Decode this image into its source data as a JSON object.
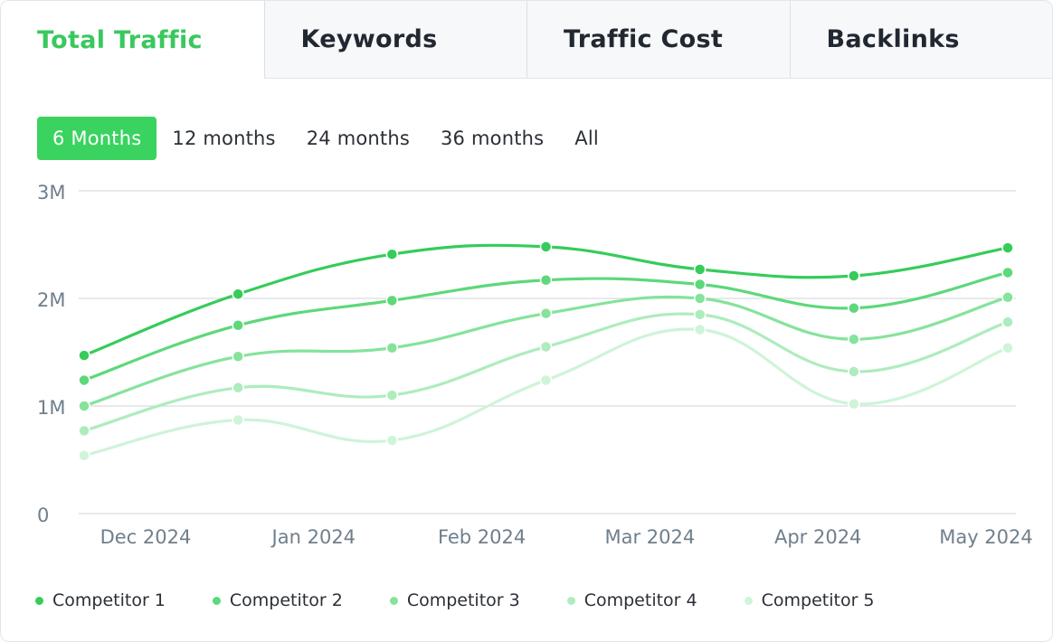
{
  "tabs": [
    {
      "label": "Total Traffic",
      "active": true
    },
    {
      "label": "Keywords",
      "active": false
    },
    {
      "label": "Traffic Cost",
      "active": false
    },
    {
      "label": "Backlinks",
      "active": false
    }
  ],
  "ranges": [
    {
      "label": "6 Months",
      "active": true
    },
    {
      "label": "12 months",
      "active": false
    },
    {
      "label": "24 months",
      "active": false
    },
    {
      "label": "36 months",
      "active": false
    },
    {
      "label": "All",
      "active": false
    }
  ],
  "chart_data": {
    "type": "line",
    "title": "",
    "xlabel": "",
    "ylabel": "",
    "ylim": [
      0,
      3000000
    ],
    "yticks": [
      {
        "value": 0,
        "label": "0"
      },
      {
        "value": 1000000,
        "label": "1M"
      },
      {
        "value": 2000000,
        "label": "2M"
      },
      {
        "value": 3000000,
        "label": "3M"
      }
    ],
    "x_tick_labels": [
      "Dec 2024",
      "Jan 2024",
      "Feb 2024",
      "Mar 2024",
      "Apr 2024",
      "May 2024"
    ],
    "grid": true,
    "legend_position": "bottom-left",
    "series": [
      {
        "name": "Competitor 1",
        "color": "#35cc5a",
        "values": [
          1470000,
          2040000,
          2410000,
          2480000,
          2270000,
          2210000,
          2470000
        ]
      },
      {
        "name": "Competitor 2",
        "color": "#5dd87a",
        "values": [
          1240000,
          1750000,
          1980000,
          2170000,
          2130000,
          1910000,
          2240000
        ]
      },
      {
        "name": "Competitor 3",
        "color": "#85e39b",
        "values": [
          1000000,
          1460000,
          1540000,
          1860000,
          2000000,
          1620000,
          2010000
        ]
      },
      {
        "name": "Competitor 4",
        "color": "#aeecbd",
        "values": [
          770000,
          1170000,
          1100000,
          1550000,
          1850000,
          1320000,
          1780000
        ]
      },
      {
        "name": "Competitor 5",
        "color": "#cff4d8",
        "values": [
          540000,
          870000,
          680000,
          1240000,
          1710000,
          1020000,
          1540000
        ]
      }
    ]
  }
}
